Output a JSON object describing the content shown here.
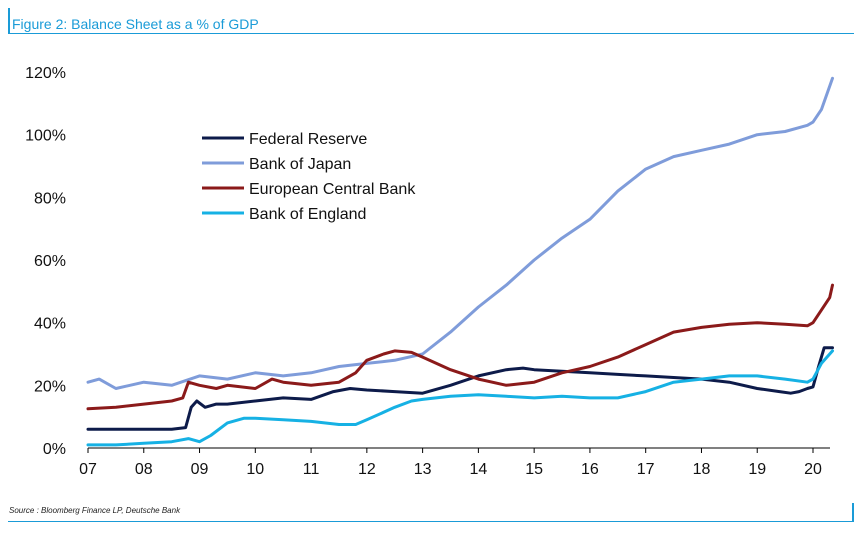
{
  "figure": {
    "title": "Figure 2: Balance Sheet as a % of GDP",
    "source": "Source : Bloomberg Finance LP, Deutsche Bank"
  },
  "chart_data": {
    "type": "line",
    "title": "Figure 2: Balance Sheet as a % of GDP",
    "xlabel": "",
    "ylabel": "",
    "x_ticks": [
      "07",
      "08",
      "09",
      "10",
      "11",
      "12",
      "13",
      "14",
      "15",
      "16",
      "17",
      "18",
      "19",
      "20"
    ],
    "y_ticks": [
      "0%",
      "20%",
      "40%",
      "60%",
      "80%",
      "100%",
      "120%"
    ],
    "xlim": [
      2007,
      2020.4
    ],
    "ylim": [
      0,
      120
    ],
    "grid": false,
    "legend_position": "upper-left",
    "series": [
      {
        "name": "Federal Reserve",
        "color": "#0d1b4a",
        "x": [
          2007,
          2007.5,
          2008,
          2008.5,
          2008.75,
          2008.85,
          2008.95,
          2009.1,
          2009.3,
          2009.5,
          2010,
          2010.5,
          2011,
          2011.4,
          2011.7,
          2012,
          2012.5,
          2013,
          2013.5,
          2014,
          2014.5,
          2014.8,
          2015,
          2015.5,
          2016,
          2016.5,
          2017,
          2017.5,
          2018,
          2018.5,
          2019,
          2019.4,
          2019.6,
          2019.75,
          2019.9,
          2020,
          2020.1,
          2020.2,
          2020.35
        ],
        "y": [
          6,
          6,
          6,
          6,
          6.5,
          13,
          15,
          13,
          14,
          14,
          15,
          16,
          15.5,
          18,
          19,
          18.5,
          18,
          17.5,
          20,
          23,
          25,
          25.5,
          25,
          24.5,
          24,
          23.5,
          23,
          22.5,
          22,
          21,
          19,
          18,
          17.5,
          18,
          19,
          19.5,
          26,
          32,
          32
        ]
      },
      {
        "name": "Bank of Japan",
        "color": "#7f9cda",
        "x": [
          2007,
          2007.2,
          2007.5,
          2008,
          2008.5,
          2009,
          2009.5,
          2010,
          2010.5,
          2011,
          2011.5,
          2012,
          2012.5,
          2013,
          2013.5,
          2014,
          2014.5,
          2015,
          2015.5,
          2016,
          2016.5,
          2017,
          2017.5,
          2018,
          2018.5,
          2019,
          2019.5,
          2019.9,
          2020,
          2020.15,
          2020.35
        ],
        "y": [
          21,
          22,
          19,
          21,
          20,
          23,
          22,
          24,
          23,
          24,
          26,
          27,
          28,
          30,
          37,
          45,
          52,
          60,
          67,
          73,
          82,
          89,
          93,
          95,
          97,
          100,
          101,
          103,
          104,
          108,
          118
        ]
      },
      {
        "name": "European Central Bank",
        "color": "#8b1a1a",
        "x": [
          2007,
          2007.5,
          2008,
          2008.5,
          2008.7,
          2008.8,
          2009,
          2009.3,
          2009.5,
          2010,
          2010.3,
          2010.5,
          2011,
          2011.5,
          2011.8,
          2012,
          2012.3,
          2012.5,
          2012.8,
          2013,
          2013.5,
          2014,
          2014.5,
          2015,
          2015.5,
          2016,
          2016.5,
          2017,
          2017.5,
          2018,
          2018.5,
          2019,
          2019.5,
          2019.9,
          2020,
          2020.15,
          2020.3,
          2020.35
        ],
        "y": [
          12.5,
          13,
          14,
          15,
          16,
          21,
          20,
          19,
          20,
          19,
          22,
          21,
          20,
          21,
          24,
          28,
          30,
          31,
          30.5,
          29,
          25,
          22,
          20,
          21,
          24,
          26,
          29,
          33,
          37,
          38.5,
          39.5,
          40,
          39.5,
          39,
          40,
          44,
          48,
          52
        ]
      },
      {
        "name": "Bank of England",
        "color": "#16b1e4",
        "x": [
          2007,
          2007.5,
          2008,
          2008.5,
          2008.8,
          2009,
          2009.2,
          2009.5,
          2009.8,
          2010,
          2010.5,
          2011,
          2011.5,
          2011.8,
          2012,
          2012.5,
          2012.8,
          2013,
          2013.5,
          2014,
          2014.5,
          2015,
          2015.5,
          2016,
          2016.5,
          2017,
          2017.5,
          2018,
          2018.5,
          2019,
          2019.5,
          2019.9,
          2020,
          2020.15,
          2020.35
        ],
        "y": [
          1,
          1,
          1.5,
          2,
          3,
          2,
          4,
          8,
          9.5,
          9.5,
          9,
          8.5,
          7.5,
          7.5,
          9,
          13,
          15,
          15.5,
          16.5,
          17,
          16.5,
          16,
          16.5,
          16,
          16,
          18,
          21,
          22,
          23,
          23,
          22,
          21,
          22,
          27,
          31
        ]
      }
    ]
  }
}
